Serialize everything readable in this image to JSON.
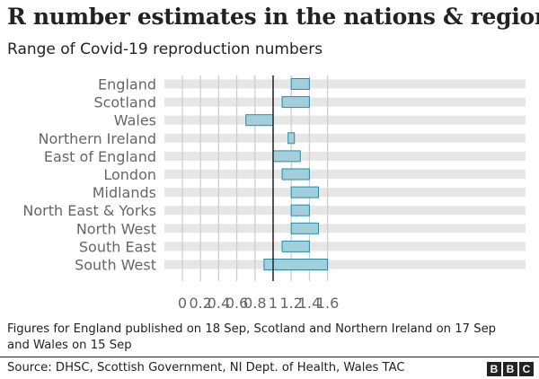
{
  "title": "R number estimates in the nations & regions",
  "subtitle": "Range of Covid-19 reproduction numbers",
  "footnote": {
    "line1": "Figures for England published on 18 Sep, Scotland and Northern Ireland on 17 Sep",
    "line2": "and Wales on 15 Sep"
  },
  "source": "Source: DHSC, Scottish Government, NI Dept. of Health, Wales TAC",
  "brand": {
    "letters": [
      "B",
      "B",
      "C"
    ]
  },
  "colors": {
    "bar_fill": "#a2cfdc",
    "bar_stroke": "#2b8ba4",
    "band": "#e6e6e6",
    "gridline": "#cccccc",
    "reference_line": "#222222",
    "tick_text": "#666666",
    "label_text": "#666666"
  },
  "chart_data": {
    "type": "bar",
    "orientation": "horizontal",
    "style": "range",
    "categories": [
      "England",
      "Scotland",
      "Wales",
      "Northern Ireland",
      "East of England",
      "London",
      "Midlands",
      "North East & Yorks",
      "North West",
      "South East",
      "South West"
    ],
    "series": [
      {
        "low": [
          1.2,
          1.1,
          0.7,
          1.2,
          1.0,
          1.1,
          1.2,
          1.2,
          1.2,
          1.1,
          0.9
        ],
        "high": [
          1.4,
          1.4,
          1.0,
          1.2,
          1.3,
          1.4,
          1.5,
          1.4,
          1.5,
          1.4,
          1.6
        ]
      }
    ],
    "xticks": [
      "0",
      "0.2",
      "0.4",
      "0.6",
      "0.8",
      "1",
      "1.2",
      "1.4",
      "1.6"
    ],
    "xtick_values": [
      0,
      0.2,
      0.4,
      0.6,
      0.8,
      1.0,
      1.2,
      1.4,
      1.6
    ],
    "xlim": [
      0,
      1.8
    ],
    "reference_value": 1,
    "grid": true,
    "legend": "none"
  }
}
